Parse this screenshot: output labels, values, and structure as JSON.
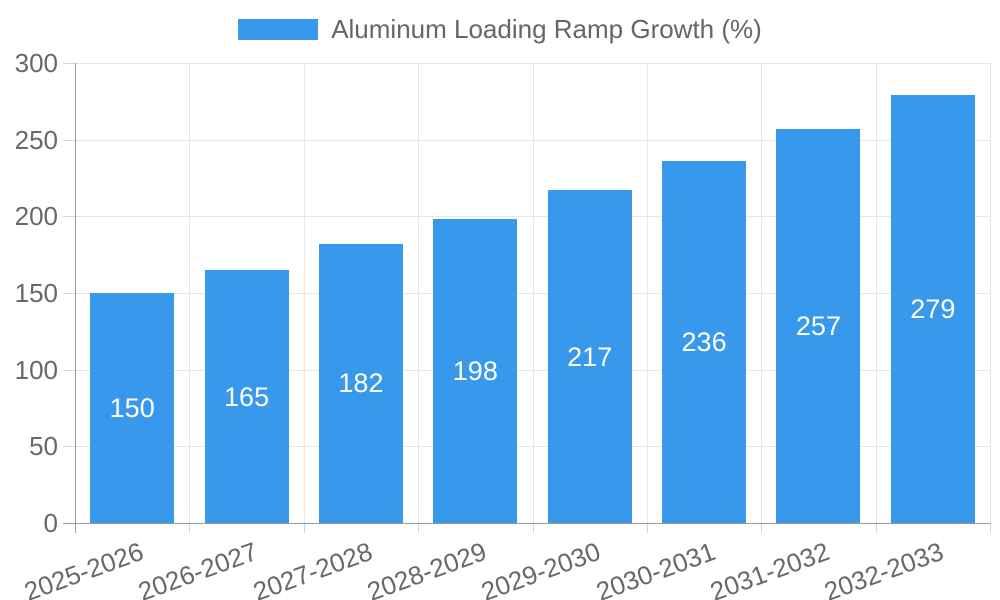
{
  "chart_data": {
    "type": "bar",
    "title": "Aluminum Loading Ramp Growth (%)",
    "categories": [
      "2025-2026",
      "2026-2027",
      "2027-2028",
      "2028-2029",
      "2029-2030",
      "2030-2031",
      "2031-2032",
      "2032-2033"
    ],
    "values": [
      150,
      165,
      182,
      198,
      217,
      236,
      257,
      279
    ],
    "xlabel": "",
    "ylabel": "",
    "ylim": [
      0,
      300
    ],
    "yticks": [
      0,
      50,
      100,
      150,
      200,
      250,
      300
    ],
    "grid": true,
    "legend_position": "top",
    "bar_color": "#3899EC",
    "value_label_color": "#FFFFFF"
  }
}
